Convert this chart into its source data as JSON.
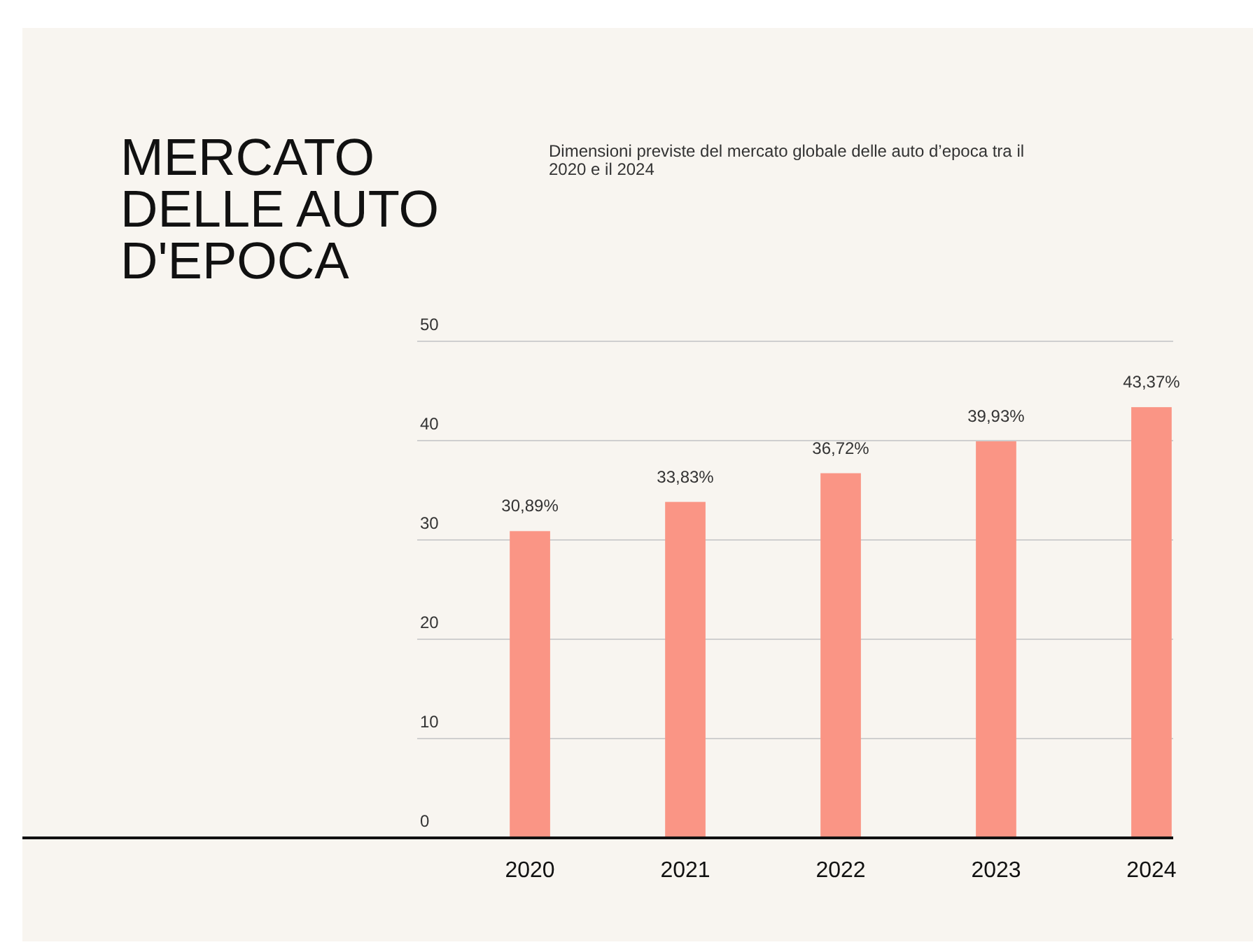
{
  "chart_data": {
    "type": "bar",
    "title": "MERCATO DELLE AUTO D'EPOCA",
    "subtitle": "Dimensioni previste del mercato globale delle auto d’epoca tra il 2020 e il 2024",
    "categories": [
      "2020",
      "2021",
      "2022",
      "2023",
      "2024"
    ],
    "values": [
      30.89,
      33.83,
      36.72,
      39.93,
      43.37
    ],
    "value_labels": [
      "30,89%",
      "33,83%",
      "36,72%",
      "39,93%",
      "43,37%"
    ],
    "color": "#fa9585",
    "ylim": [
      0,
      50
    ],
    "yticks": [
      0,
      10,
      20,
      30,
      40,
      50
    ],
    "grid": "y"
  }
}
